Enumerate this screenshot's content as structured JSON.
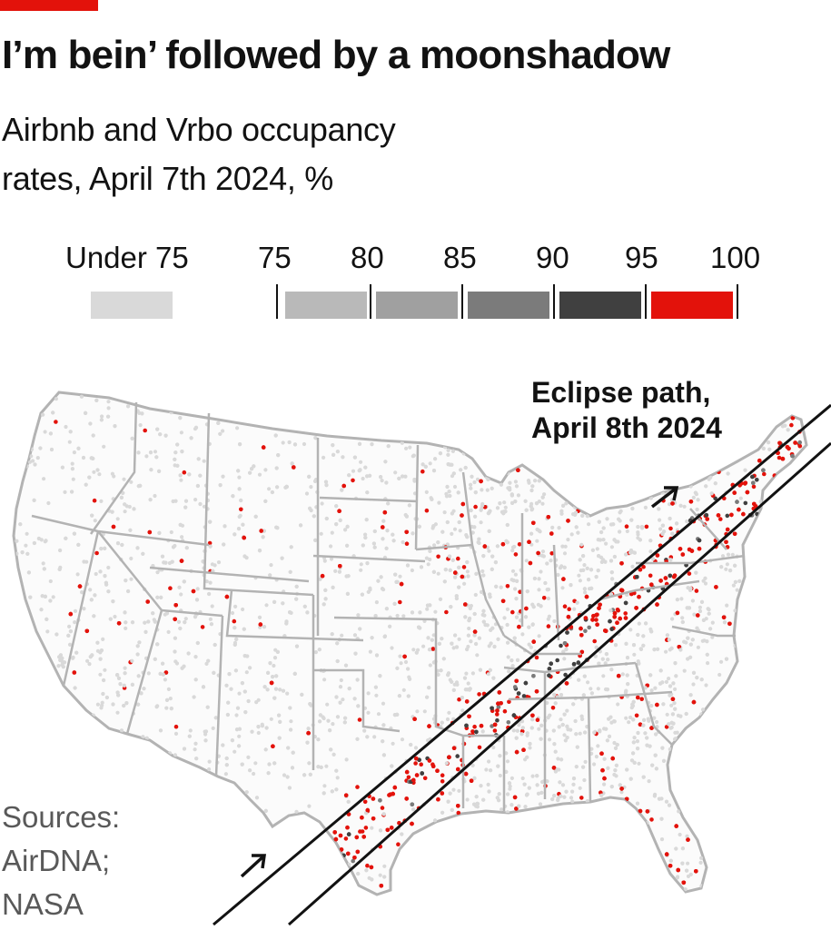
{
  "header": {
    "title": "I’m bein’ followed by a moonshadow",
    "subtitle_line1": "Airbnb and Vrbo occupancy",
    "subtitle_line2": "rates, April 7th 2024, %"
  },
  "legend": {
    "under_label": "Under 75",
    "ticks": [
      "75",
      "80",
      "85",
      "90",
      "95",
      "100"
    ],
    "bins": [
      {
        "range": "Under 75",
        "color": "#d9d9d9"
      },
      {
        "range": "75-80",
        "color": "#b9b9b9"
      },
      {
        "range": "80-85",
        "color": "#a0a0a0"
      },
      {
        "range": "85-90",
        "color": "#7b7b7b"
      },
      {
        "range": "90-95",
        "color": "#404040"
      },
      {
        "range": "95-100",
        "color": "#e3120b"
      }
    ]
  },
  "map": {
    "region": "Contiguous United States",
    "annotation_line1": "Eclipse path,",
    "annotation_line2": "April 8th 2024",
    "colors": {
      "state_border": "#b3b3b3",
      "path_line": "#121212"
    }
  },
  "sources": {
    "line1": "Sources:",
    "line2": "AirDNA;",
    "line3": "NASA"
  }
}
